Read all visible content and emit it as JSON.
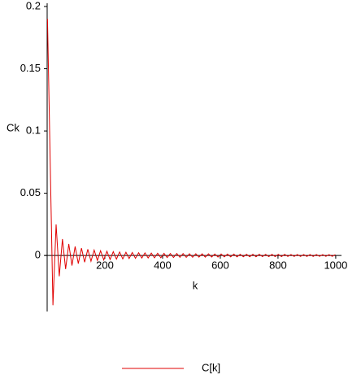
{
  "chart_data": {
    "type": "line",
    "xlabel": "k",
    "ylabel": "Ck",
    "x": [
      1,
      20,
      31,
      42,
      53,
      64,
      75,
      86,
      97,
      108,
      119,
      130,
      141,
      152,
      163,
      174,
      185,
      196,
      207,
      218,
      229,
      240,
      251,
      262,
      273,
      284,
      295,
      306,
      317,
      328,
      339,
      350,
      361,
      372,
      383,
      394,
      405,
      416,
      427,
      438,
      449,
      460,
      471,
      482,
      493,
      504,
      515,
      526,
      537,
      548,
      559,
      570,
      581,
      592,
      603,
      614,
      625,
      636,
      647,
      658,
      669,
      680,
      691,
      702,
      713,
      724,
      735,
      746,
      757,
      768,
      779,
      790,
      801,
      812,
      823,
      834,
      845,
      856,
      867,
      878,
      889,
      900,
      911,
      922,
      933,
      944,
      955,
      966,
      977,
      988,
      999
    ],
    "series": [
      {
        "name": "C[k]",
        "color": "#e00000",
        "values": [
          0.19,
          -0.04,
          0.025,
          -0.0167,
          0.0132,
          -0.0109,
          0.0093,
          -0.0081,
          0.0072,
          -0.0065,
          0.0059,
          -0.0054,
          0.005,
          -0.0046,
          0.0043,
          -0.004,
          0.0038,
          -0.0036,
          0.0034,
          -0.0032,
          0.0031,
          -0.0029,
          0.0028,
          -0.0027,
          0.0026,
          -0.0025,
          0.0024,
          -0.0023,
          0.0022,
          -0.0021,
          0.0021,
          -0.002,
          0.0019,
          -0.0019,
          0.0018,
          -0.0018,
          0.0017,
          -0.0017,
          0.0016,
          -0.0016,
          0.0016,
          -0.0015,
          0.0015,
          -0.0015,
          0.0014,
          -0.0014,
          0.0014,
          -0.0013,
          0.0013,
          -0.0013,
          0.0013,
          -0.0012,
          0.0012,
          -0.0012,
          0.0012,
          -0.0011,
          0.0011,
          -0.0011,
          0.0011,
          -0.0011,
          0.001,
          -0.001,
          0.001,
          -0.001,
          0.001,
          -0.001,
          0.001,
          -0.0009,
          0.0009,
          -0.0009,
          0.0009,
          -0.0009,
          0.0009,
          -0.0009,
          0.0009,
          -0.0008,
          0.0008,
          -0.0008,
          0.0008,
          -0.0008,
          0.0008,
          -0.0008,
          0.0008,
          -0.0008,
          0.0008,
          -0.0007,
          0.0007,
          -0.0007,
          0.0007,
          -0.0007,
          0.0007
        ]
      }
    ],
    "xlim": [
      0,
      1020
    ],
    "ylim": [
      -0.045,
      0.2
    ],
    "xticks": [
      200,
      400,
      600,
      800,
      1000
    ],
    "yticks": [
      0,
      0.05,
      0.1,
      0.15,
      0.2
    ],
    "grid": false
  }
}
